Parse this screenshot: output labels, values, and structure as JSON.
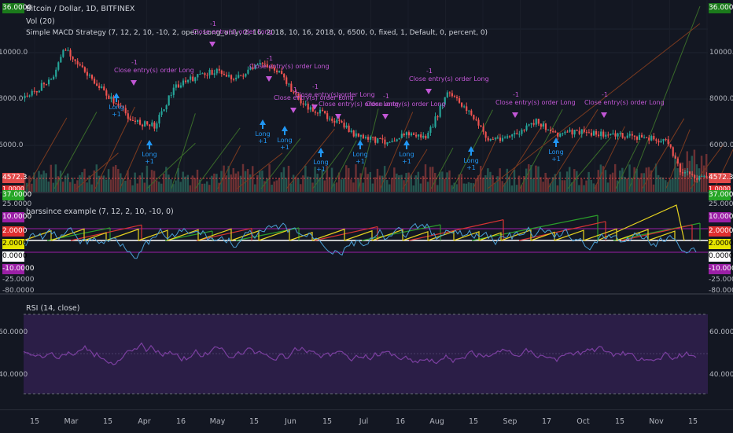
{
  "price_pane": {
    "title": "Bitcoin / Dollar, 1D, BITFINEX",
    "vol": "Vol (20)",
    "strategy": "Simple MACD Strategy (7, 12, 2, 10, -10, 2, open, Long_only, 2, 16, 2018, 10, 16, 2018, 0, 6500, 0, fixed, 1, Default, 0, percent, 0)",
    "top_tag": "36.0000",
    "bottom_tag": "1.0000",
    "price_tag": "4572.3",
    "scale": [
      "10000.0",
      "8000.0",
      "6000.0"
    ],
    "tag_colors": {
      "top": "#1b7a1b",
      "price": "#e04a4a",
      "bottom": "#e03030"
    }
  },
  "trade_labels": [
    {
      "text": "Long\n+1",
      "dir": "up"
    },
    {
      "text": "-1",
      "dir": "down"
    },
    {
      "text": "Close entry(s) order Long",
      "dir": "down"
    },
    {
      "text": "Long\n+1",
      "dir": "up"
    }
  ],
  "osc_pane": {
    "title": "barssince example (7, 12, 2, 10, -10, 0)",
    "tags": [
      {
        "value": "37.0000",
        "color": "#26a626"
      },
      {
        "value": "25.0000",
        "color": ""
      },
      {
        "value": "10.0000",
        "color": "#9b1fa6"
      },
      {
        "value": "2.0000",
        "color": "#e03030"
      },
      {
        "value": "2.0000",
        "color": "#e5e500"
      },
      {
        "value": "0.0000",
        "color": "#ffffff"
      },
      {
        "value": "-10.0000",
        "color": "#9b1fa6"
      },
      {
        "value": "-25.0000",
        "color": ""
      },
      {
        "value": "-80.0000",
        "color": ""
      }
    ],
    "colors": {
      "green": "#2a9d2a",
      "red": "#d63333",
      "yellow": "#e5d21f",
      "blue": "#4a9fd6",
      "purple": "#9b1fa6"
    }
  },
  "rsi_pane": {
    "title": "RSI (14, close)",
    "scale": [
      "60.0000",
      "40.0000"
    ],
    "colors": {
      "band": "#2b1e47",
      "line": "#7b3fa0"
    }
  },
  "x_axis": [
    "15",
    "Mar",
    "15",
    "Apr",
    "16",
    "May",
    "15",
    "Jun",
    "15",
    "Jul",
    "16",
    "Aug",
    "15",
    "Sep",
    "17",
    "Oct",
    "15",
    "Nov",
    "15"
  ]
}
